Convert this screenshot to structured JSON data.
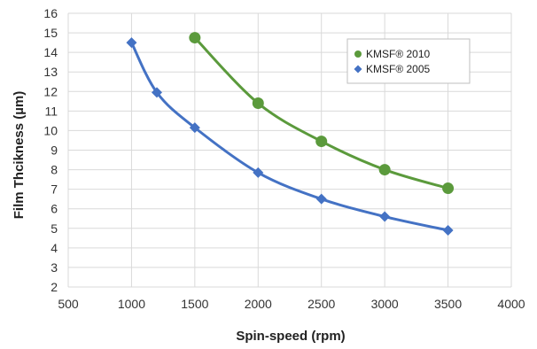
{
  "chart_data": {
    "type": "scatter",
    "title": "",
    "xlabel": "Spin-speed (rpm)",
    "ylabel": "Film Thcikness (µm)",
    "xlim": [
      500,
      4000
    ],
    "ylim": [
      2,
      16
    ],
    "x_ticks": [
      "500",
      "1000",
      "1500",
      "2000",
      "2500",
      "3000",
      "3500",
      "4000"
    ],
    "y_ticks": [
      "2",
      "3",
      "4",
      "5",
      "6",
      "7",
      "8",
      "9",
      "10",
      "11",
      "12",
      "13",
      "14",
      "15",
      "16"
    ],
    "grid": true,
    "legend_position": "top-right",
    "series": [
      {
        "name": "KMSF® 2010",
        "marker": "circle",
        "color": "#5b9a3c",
        "x": [
          1500,
          2000,
          2500,
          3000,
          3500
        ],
        "y": [
          14.75,
          11.4,
          9.45,
          8.0,
          7.05
        ]
      },
      {
        "name": "KMSF® 2005",
        "marker": "diamond",
        "color": "#4472c4",
        "x": [
          1000,
          1200,
          1500,
          2000,
          2500,
          3000,
          3500
        ],
        "y": [
          14.5,
          11.95,
          10.15,
          7.85,
          6.5,
          5.6,
          4.9
        ]
      }
    ]
  }
}
